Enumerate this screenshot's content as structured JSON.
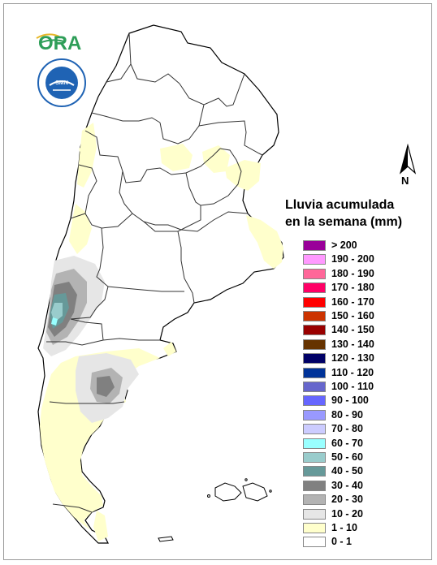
{
  "logos": {
    "ora": "ORA",
    "smn_ring_text": "SERVICIO METEOROLÓGICO NACIONAL · ARGENTINA ·"
  },
  "north_arrow": {
    "label": "N"
  },
  "legend": {
    "title_line1": "Lluvia acumulada",
    "title_line2": "en la semana (mm)",
    "items": [
      {
        "label": "> 200",
        "color": "#990099"
      },
      {
        "label": "190 - 200",
        "color": "#ff99ff"
      },
      {
        "label": "180 - 190",
        "color": "#ff6699"
      },
      {
        "label": "170 - 180",
        "color": "#ff0066"
      },
      {
        "label": "160 - 170",
        "color": "#ff0000"
      },
      {
        "label": "150 - 160",
        "color": "#cc3300"
      },
      {
        "label": "140 - 150",
        "color": "#990000"
      },
      {
        "label": "130 - 140",
        "color": "#663300"
      },
      {
        "label": "120 - 130",
        "color": "#000066"
      },
      {
        "label": "110 - 120",
        "color": "#003399"
      },
      {
        "label": "100 - 110",
        "color": "#6666cc"
      },
      {
        "label": "90 - 100",
        "color": "#6666ff"
      },
      {
        "label": "80 - 90",
        "color": "#9999ff"
      },
      {
        "label": "70 - 80",
        "color": "#ccccff"
      },
      {
        "label": "60 - 70",
        "color": "#99ffff"
      },
      {
        "label": "50 - 60",
        "color": "#99cccc"
      },
      {
        "label": "40 - 50",
        "color": "#669999"
      },
      {
        "label": "30 - 40",
        "color": "#808080"
      },
      {
        "label": "20 - 30",
        "color": "#b3b3b3"
      },
      {
        "label": "10 - 20",
        "color": "#e6e6e6"
      },
      {
        "label": "1 - 10",
        "color": "#ffffcc"
      },
      {
        "label": "0 - 1",
        "color": "#ffffff"
      }
    ]
  },
  "colors": {
    "border": "#333333",
    "outline": "#000000",
    "frame": "#9a9a9a",
    "ora_green": "#2e9e58",
    "ora_yellow": "#e8b82a",
    "smn_blue": "#1f63b4"
  }
}
